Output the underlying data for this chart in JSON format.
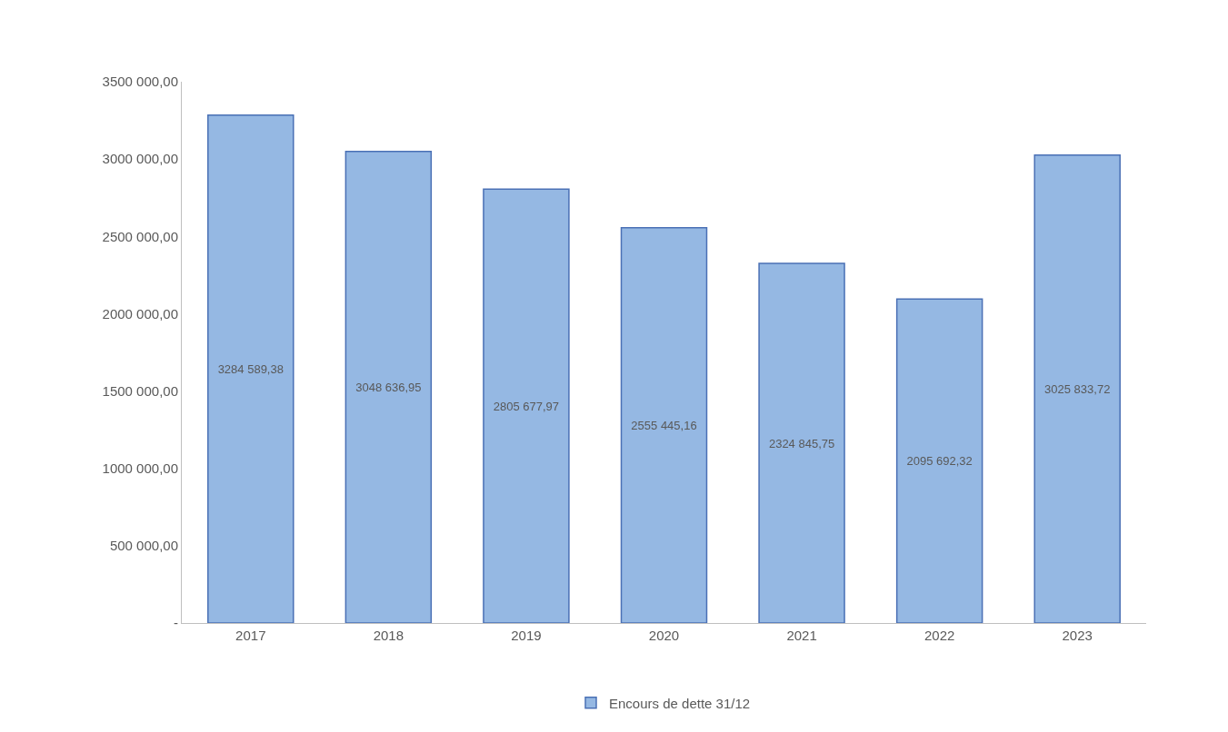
{
  "chart_data": {
    "type": "bar",
    "categories": [
      "2017",
      "2018",
      "2019",
      "2020",
      "2021",
      "2022",
      "2023"
    ],
    "series": [
      {
        "name": "Encours de dette 31/12",
        "color": "#95b8e3",
        "values": [
          3284589.38,
          3048636.95,
          2805677.97,
          2555445.16,
          2324845.75,
          2095692.32,
          3025833.72
        ],
        "value_labels": [
          "3284 589,38",
          "3048 636,95",
          "2805 677,97",
          "2555 445,16",
          "2324 845,75",
          "2095 692,32",
          "3025 833,72"
        ]
      }
    ],
    "ylim": [
      0,
      3500000
    ],
    "yticks": [
      {
        "value": 0,
        "label": "-"
      },
      {
        "value": 500000,
        "label": "500 000,00"
      },
      {
        "value": 1000000,
        "label": "1000 000,00"
      },
      {
        "value": 1500000,
        "label": "1500 000,00"
      },
      {
        "value": 2000000,
        "label": "2000 000,00"
      },
      {
        "value": 2500000,
        "label": "2500 000,00"
      },
      {
        "value": 3000000,
        "label": "3000 000,00"
      },
      {
        "value": 3500000,
        "label": "3500 000,00"
      }
    ],
    "legend": "bottom"
  }
}
